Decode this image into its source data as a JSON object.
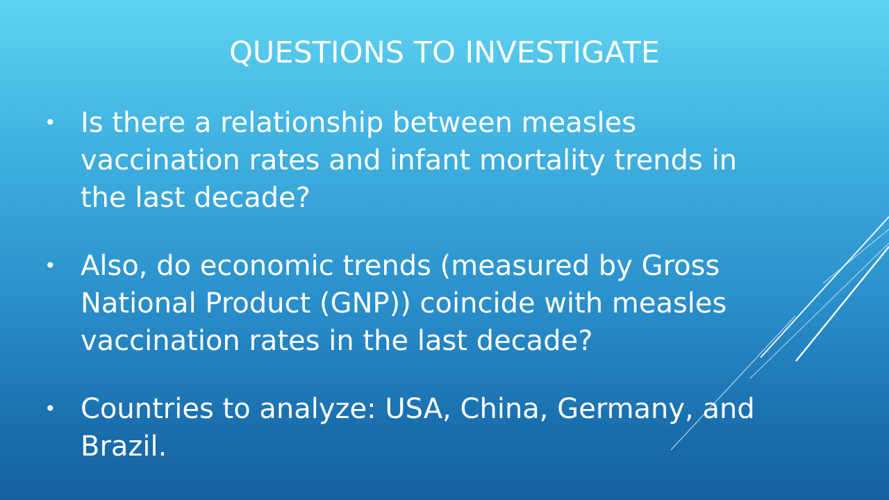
{
  "slide": {
    "title": "QUESTIONS TO INVESTIGATE",
    "bullet_symbol": "•",
    "bullets": [
      "Is there a relationship between measles vaccination rates and infant mortality trends in the last decade?",
      "Also, do economic trends (measured by Gross National Product (GNP)) coincide with measles vaccination rates in the last decade?",
      "Countries to analyze: USA, China, Germany, and Brazil."
    ]
  },
  "colors": {
    "text": "#ffffff",
    "background_top": "#5fd3f1",
    "background_bottom": "#15619f"
  }
}
